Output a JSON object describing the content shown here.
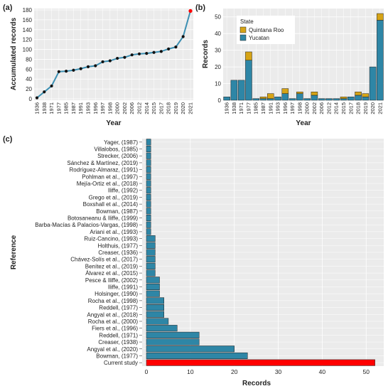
{
  "colors": {
    "panel_bg": "#ebebeb",
    "grid": "#ffffff",
    "line": "#3b8fb2",
    "point": "#111111",
    "highlight": "#ff0000",
    "yucatan": "#2e86a6",
    "quintana_roo": "#d6a416",
    "bar_c": "#2e86a6"
  },
  "chart_data": [
    {
      "panel_label": "(a)",
      "type": "line",
      "xlabel": "Year",
      "ylabel": "Accumulated records",
      "ylim": [
        0,
        180
      ],
      "yticks": [
        0,
        20,
        40,
        60,
        80,
        100,
        120,
        140,
        160,
        180
      ],
      "grid": true,
      "x": [
        "1936",
        "1938",
        "1971",
        "1977",
        "1985",
        "1987",
        "1991",
        "1993",
        "1996",
        "1997",
        "1998",
        "2000",
        "2002",
        "2006",
        "2012",
        "2014",
        "2015",
        "2017",
        "2018",
        "2019",
        "2020",
        "2021"
      ],
      "values": [
        2,
        14,
        26,
        55,
        56,
        58,
        61,
        65,
        67,
        75,
        77,
        82,
        84,
        89,
        91,
        92,
        94,
        96,
        101,
        105,
        126,
        178
      ],
      "highlight_last": true
    },
    {
      "panel_label": "(b)",
      "type": "bar",
      "xlabel": "Year",
      "ylabel": "Records",
      "ylim": [
        0,
        55
      ],
      "yticks": [
        0,
        10,
        20,
        30,
        40,
        50
      ],
      "grid": true,
      "legend": {
        "title": "State",
        "placement": "top-left",
        "entries": [
          "Quintana Roo",
          "Yucatan"
        ]
      },
      "categories": [
        "1936",
        "1938",
        "1971",
        "1977",
        "1985",
        "1987",
        "1991",
        "1993",
        "1996",
        "1997",
        "1998",
        "2000",
        "2002",
        "2006",
        "2012",
        "2014",
        "2015",
        "2017",
        "2018",
        "2019",
        "2020",
        "2021"
      ],
      "series": [
        {
          "name": "Yucatan",
          "values": [
            2,
            12,
            12,
            24,
            1,
            1,
            1,
            2,
            4,
            1,
            4,
            1,
            3,
            1,
            1,
            1,
            1,
            2,
            3,
            2,
            20,
            48
          ]
        },
        {
          "name": "Quintana Roo",
          "values": [
            0,
            0,
            0,
            5,
            0,
            1,
            3,
            0,
            3,
            0,
            1,
            0,
            2,
            0,
            0,
            0,
            1,
            0,
            2,
            2,
            0,
            4
          ]
        }
      ],
      "highlight_last": true
    },
    {
      "panel_label": "(c)",
      "type": "bar",
      "orientation": "horizontal",
      "xlabel": "Records",
      "ylabel": "Reference",
      "xlim": [
        0,
        54
      ],
      "xticks": [
        0,
        10,
        20,
        30,
        40,
        50
      ],
      "grid": true,
      "categories": [
        "Yager, (1987)",
        "Villalobos, (1985)",
        "Strecker, (2006)",
        "Sánchez & Martínez, (2019)",
        "Rodríguez-Almaraz, (1991)",
        "Pohlman et al., (1997)",
        "Mejía-Ortiz et al., (2018)",
        "Iliffe, (1992)",
        "Grego et al., (2019)",
        "Boxshall et al., (2014)",
        "Bowman, (1987)",
        "Botosaneanu & Iliffe, (1999)",
        "Barba-Macías & Palacios-Vargas, (1998)",
        "Ariani et al., (1993)",
        "Ruiz-Cancino, (1993)",
        "Holthuis, (1977)",
        "Creaser, (1936)",
        "Chávez-Solís et al., (2017)",
        "Benítez et al., (2019)",
        "Álvarez et al., (2015)",
        "Pesce & Iliffe, (2002)",
        "Iliffe, (1991)",
        "Holsinger, (1990)",
        "Rocha et al., (1998)",
        "Reddell, (1977)",
        "Angyal et al., (2018)",
        "Rocha et al., (2000)",
        "Fiers et al., (1996)",
        "Reddell, (1971)",
        "Creaser, (1938)",
        "Angyal et al., (2020)",
        "Bowman, (1977)",
        "Current study"
      ],
      "values": [
        1,
        1,
        1,
        1,
        1,
        1,
        1,
        1,
        1,
        1,
        1,
        1,
        1,
        1,
        2,
        2,
        2,
        2,
        2,
        2,
        3,
        3,
        3,
        4,
        4,
        4,
        5,
        7,
        12,
        12,
        20,
        23,
        52
      ],
      "highlight_last": true
    }
  ]
}
